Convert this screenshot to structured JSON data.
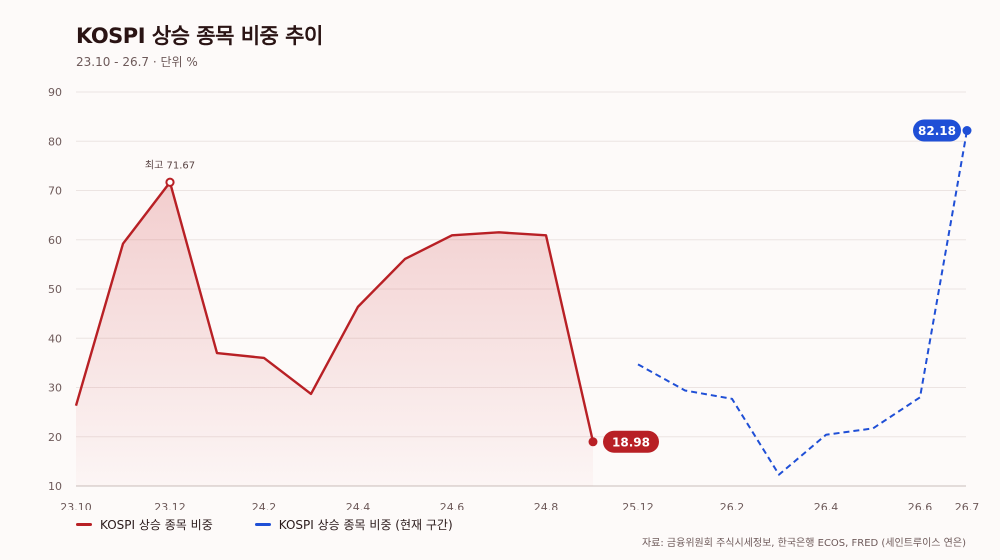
{
  "header": {
    "title": "KOSPI 상승 종목 비중 추이",
    "subtitle": "23.10 - 26.7 · 단위 %"
  },
  "colors": {
    "red": "#b82025",
    "blue": "#1f4fd6",
    "grid": "#ece4e2",
    "axis": "#c9bdbb"
  },
  "chart_data": {
    "type": "line",
    "x_ticks": [
      "23.10",
      "23.12",
      "24.2",
      "24.4",
      "24.6",
      "24.8",
      "25.12",
      "26.2",
      "26.4",
      "26.6",
      "26.7"
    ],
    "y_ticks": [
      10,
      20,
      30,
      40,
      50,
      60,
      70,
      80,
      90
    ],
    "ylim": [
      10,
      90
    ],
    "grid": true,
    "legend_placement": "bottom-left",
    "series": [
      {
        "name": "KOSPI 상승 종목 비중",
        "style": "solid-area",
        "x": [
          "23.10",
          "23.11",
          "23.12",
          "24.1",
          "24.2",
          "24.3",
          "24.4",
          "24.5",
          "24.6",
          "24.7",
          "24.8",
          "24.9"
        ],
        "values": [
          26.3,
          59.2,
          71.67,
          37.0,
          36.0,
          28.7,
          46.4,
          56.1,
          60.9,
          61.5,
          60.9,
          18.98
        ]
      },
      {
        "name": "KOSPI 상승 종목 비중 (현재 구간)",
        "style": "dashed",
        "x": [
          "25.12",
          "26.1",
          "26.2",
          "26.3",
          "26.4",
          "26.5",
          "26.6",
          "26.7"
        ],
        "values": [
          34.7,
          29.4,
          27.7,
          12.3,
          20.4,
          21.7,
          28.0,
          82.18
        ]
      }
    ],
    "annotations": {
      "peak_label": "최고 71.67",
      "red_end_label": "18.98",
      "blue_end_label": "82.18"
    }
  },
  "legend": {
    "red_label": "KOSPI 상승 종목 비중",
    "blue_label": "KOSPI 상승 종목 비중 (현재 구간)"
  },
  "source": "자료: 금융위원회 주식시세정보, 한국은행 ECOS, FRED (세인트루이스 연은)"
}
